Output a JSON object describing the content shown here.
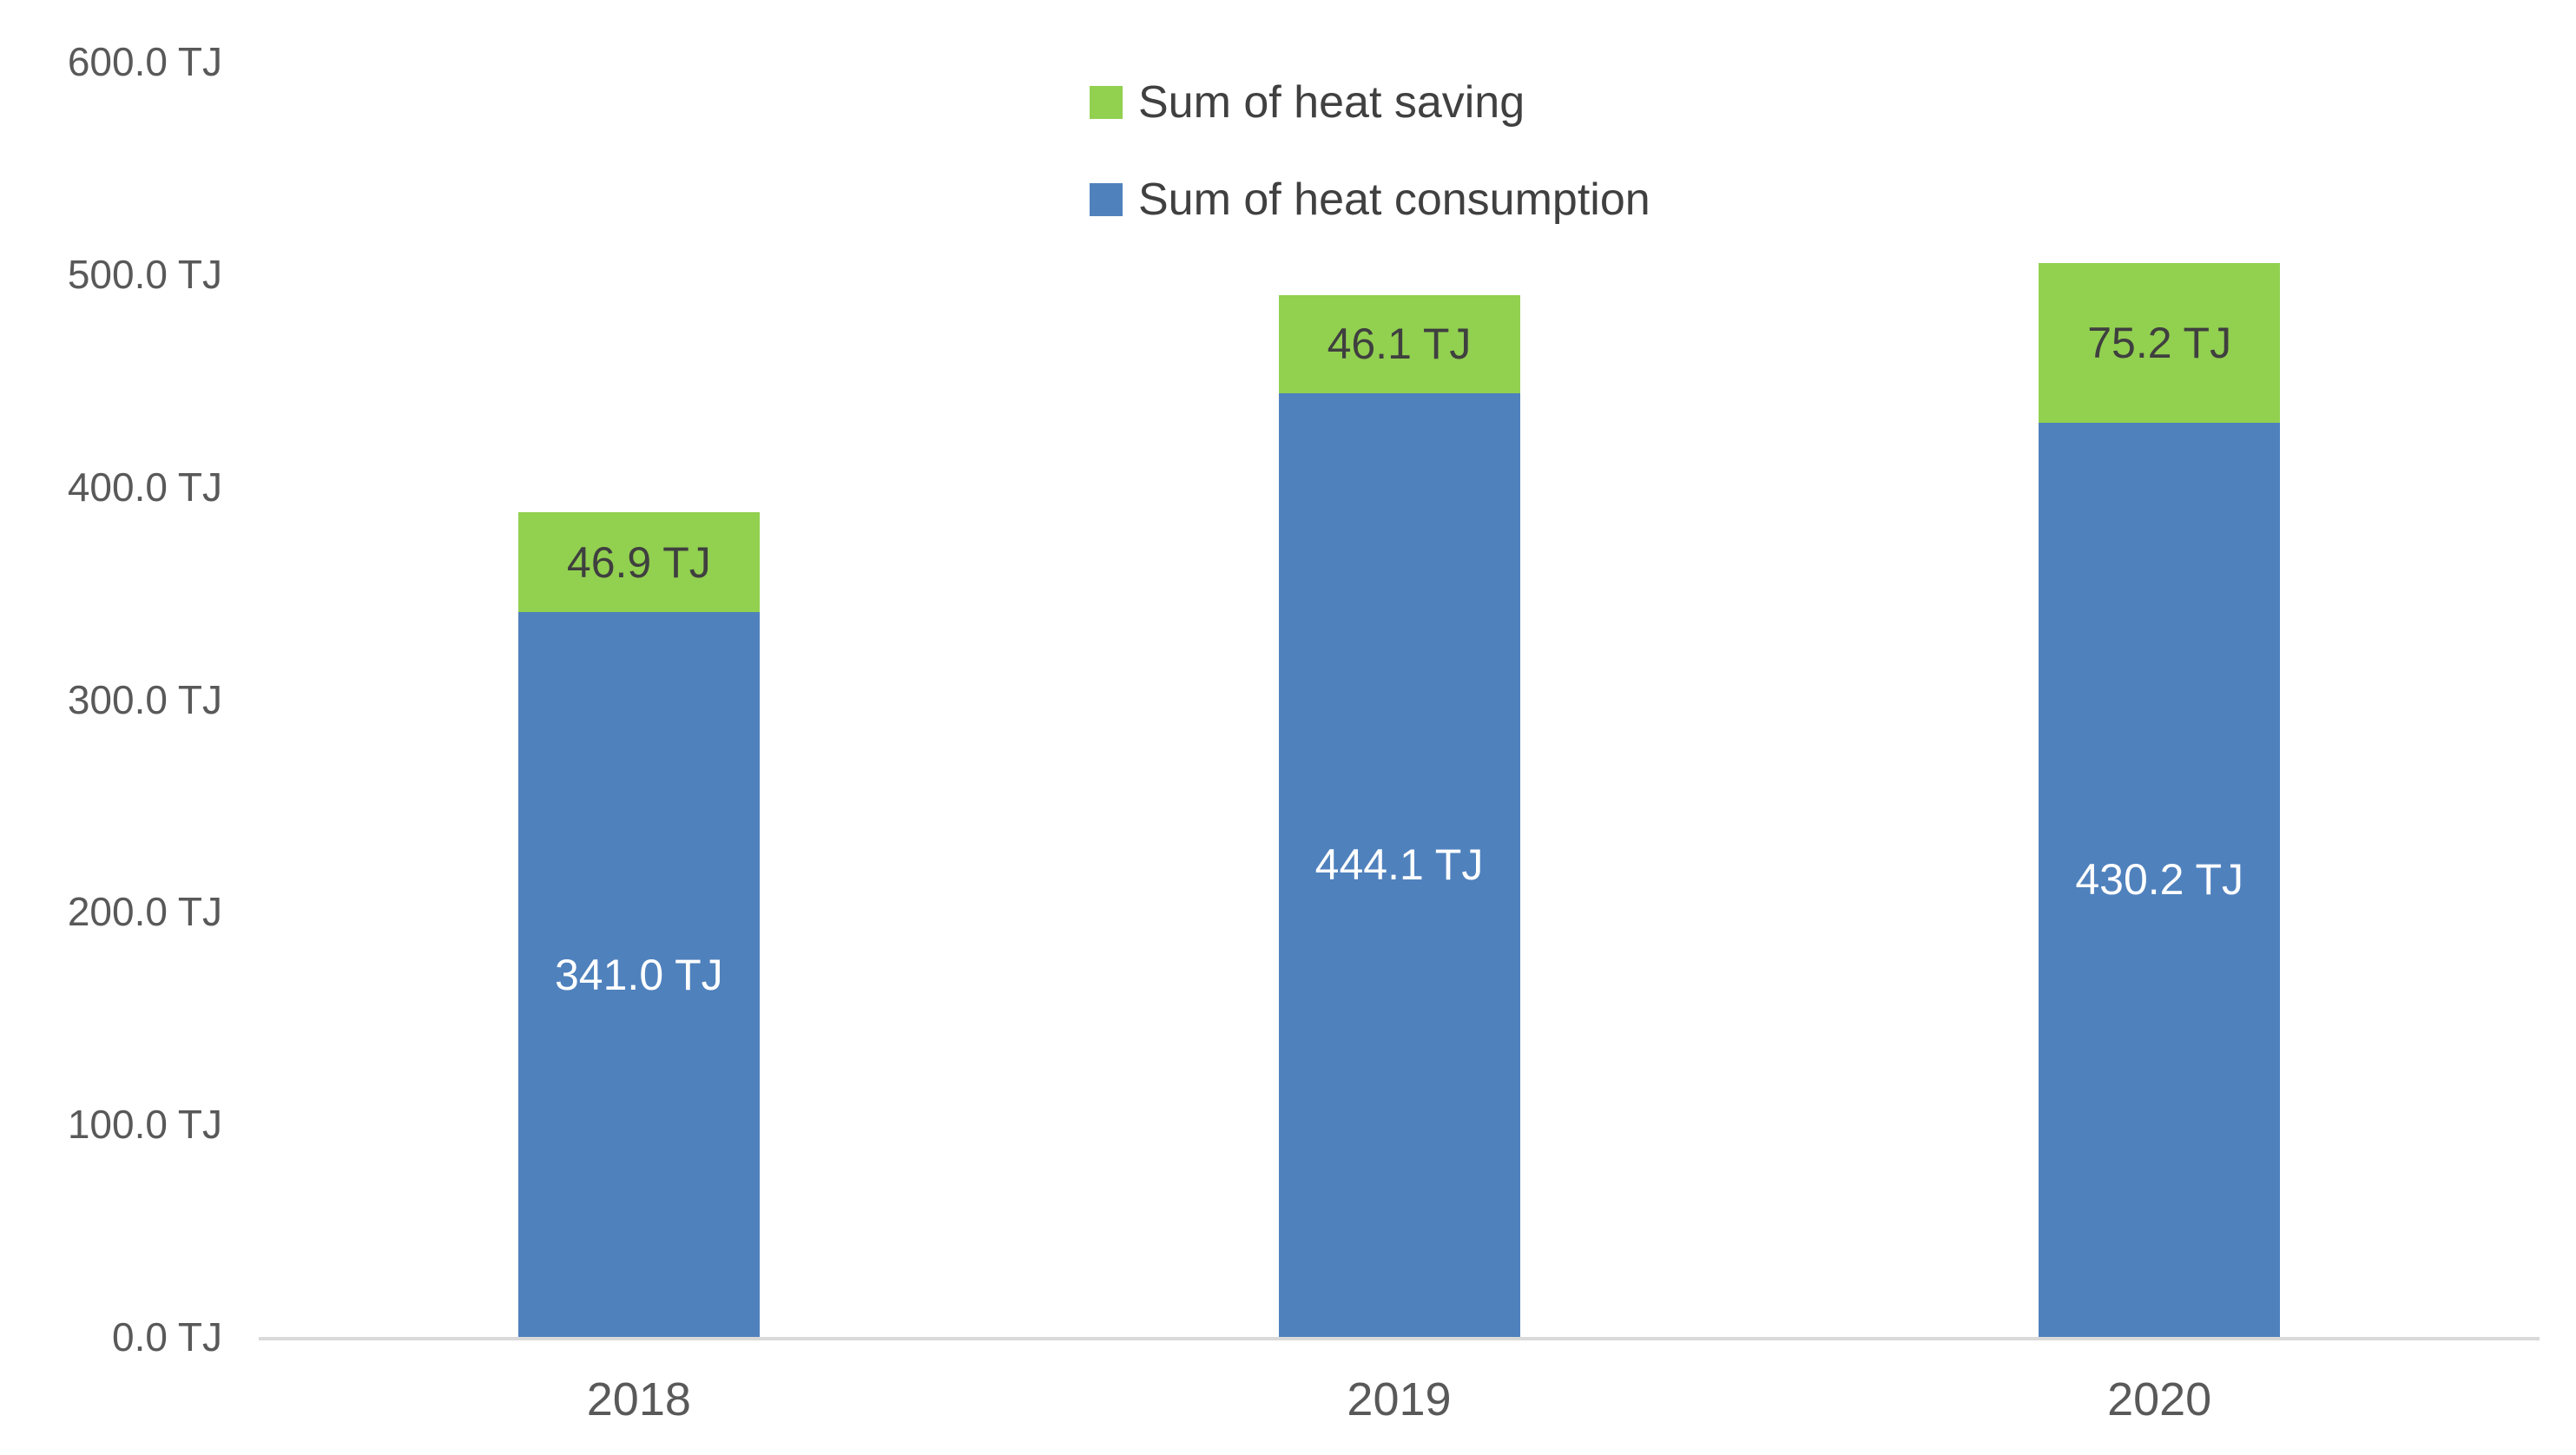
{
  "chart_data": {
    "type": "bar",
    "stacked": true,
    "title": "",
    "unit": "TJ",
    "categories": [
      "2018",
      "2019",
      "2020"
    ],
    "series": [
      {
        "name": "Sum of heat consumption",
        "color": "#4F81BD",
        "label_color": "#FFFFFF",
        "values": [
          341.0,
          444.1,
          430.2
        ],
        "labels": [
          "341.0 TJ",
          "444.1 TJ",
          "430.2 TJ"
        ]
      },
      {
        "name": "Sum of heat saving",
        "color": "#92D050",
        "label_color": "#3F3F3F",
        "values": [
          46.9,
          46.1,
          75.2
        ],
        "labels": [
          "46.9 TJ",
          "46.1 TJ",
          "75.2 TJ"
        ]
      }
    ],
    "totals": [
      387.9,
      490.2,
      505.4
    ],
    "ylim": [
      0,
      600
    ],
    "ytick_step": 100,
    "ytick_labels": [
      "0.0 TJ",
      "100.0 TJ",
      "200.0 TJ",
      "300.0 TJ",
      "400.0 TJ",
      "500.0 TJ",
      "600.0 TJ"
    ],
    "xlabel": "",
    "ylabel": "",
    "grid": false,
    "axis_line_color": "#D9D9D9",
    "tick_label_color": "#595959",
    "legend": {
      "position": "top-center",
      "entries": [
        {
          "label": "Sum of heat saving",
          "color": "#92D050"
        },
        {
          "label": "Sum of heat consumption",
          "color": "#4F81BD"
        }
      ]
    }
  }
}
